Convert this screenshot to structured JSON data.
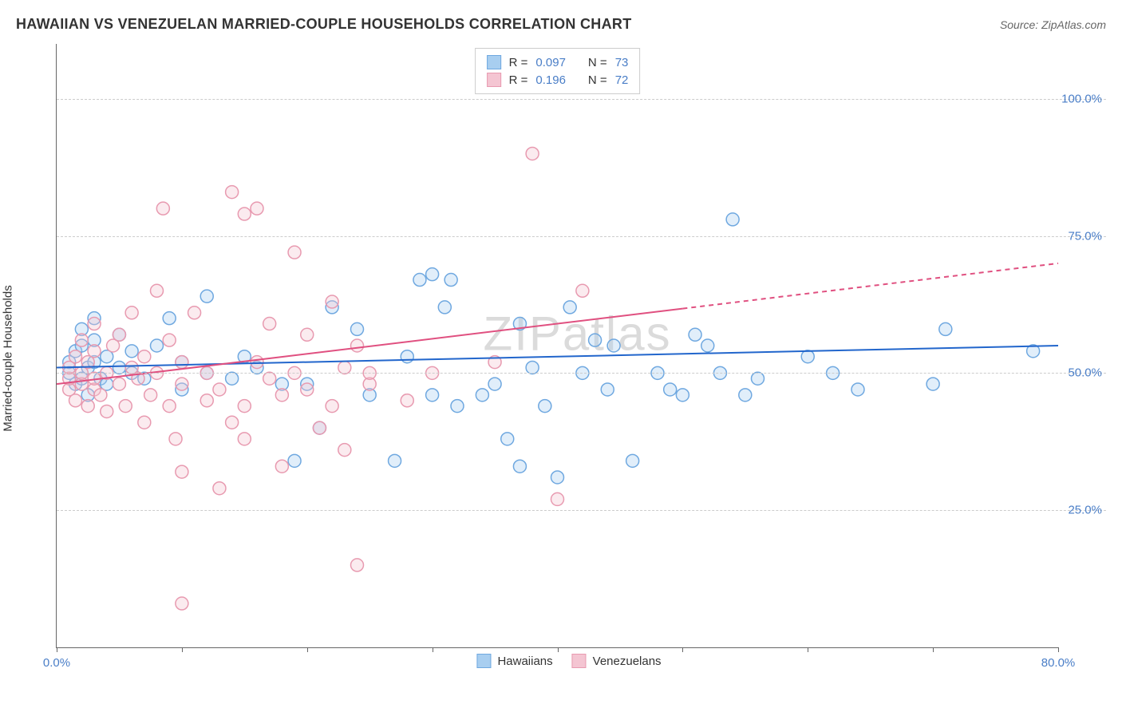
{
  "header": {
    "title": "HAWAIIAN VS VENEZUELAN MARRIED-COUPLE HOUSEHOLDS CORRELATION CHART",
    "source": "Source: ZipAtlas.com"
  },
  "watermark": "ZIPatlas",
  "chart": {
    "type": "scatter",
    "y_axis_label": "Married-couple Households",
    "xlim": [
      0,
      80
    ],
    "ylim": [
      0,
      110
    ],
    "x_ticks": [
      0,
      10,
      20,
      30,
      40,
      50,
      60,
      70,
      80
    ],
    "x_tick_labels": {
      "0": "0.0%",
      "80": "80.0%"
    },
    "y_gridlines": [
      25,
      50,
      75,
      100
    ],
    "y_tick_labels": {
      "25": "25.0%",
      "50": "50.0%",
      "75": "75.0%",
      "100": "100.0%"
    },
    "background_color": "#ffffff",
    "grid_color": "#cccccc",
    "axis_color": "#666666",
    "marker_radius": 8,
    "marker_stroke_width": 1.5,
    "marker_fill_opacity": 0.35,
    "series": [
      {
        "name": "Hawaiians",
        "color_stroke": "#6fa8e0",
        "color_fill": "#a8cef0",
        "r_value": "0.097",
        "n_value": "73",
        "regression": {
          "x1": 0,
          "y1": 51,
          "x2": 80,
          "y2": 55,
          "dashed_from_x": null,
          "line_color": "#2266cc",
          "line_width": 2
        },
        "points": [
          [
            1,
            50
          ],
          [
            1,
            52
          ],
          [
            1.5,
            48
          ],
          [
            1.5,
            54
          ],
          [
            2,
            49
          ],
          [
            2,
            55
          ],
          [
            2,
            58
          ],
          [
            2.5,
            46
          ],
          [
            2.5,
            51
          ],
          [
            3,
            52
          ],
          [
            3,
            56
          ],
          [
            3,
            60
          ],
          [
            3.5,
            49
          ],
          [
            4,
            53
          ],
          [
            4,
            48
          ],
          [
            5,
            57
          ],
          [
            5,
            51
          ],
          [
            6,
            50
          ],
          [
            6,
            54
          ],
          [
            7,
            49
          ],
          [
            8,
            55
          ],
          [
            9,
            60
          ],
          [
            10,
            47
          ],
          [
            10,
            52
          ],
          [
            12,
            50
          ],
          [
            12,
            64
          ],
          [
            14,
            49
          ],
          [
            15,
            53
          ],
          [
            16,
            51
          ],
          [
            18,
            48
          ],
          [
            19,
            34
          ],
          [
            20,
            48
          ],
          [
            21,
            40
          ],
          [
            22,
            62
          ],
          [
            24,
            58
          ],
          [
            25,
            46
          ],
          [
            27,
            34
          ],
          [
            28,
            53
          ],
          [
            29,
            67
          ],
          [
            30,
            46
          ],
          [
            30,
            68
          ],
          [
            31,
            62
          ],
          [
            31.5,
            67
          ],
          [
            32,
            44
          ],
          [
            34,
            46
          ],
          [
            35,
            48
          ],
          [
            36,
            38
          ],
          [
            37,
            33
          ],
          [
            37,
            59
          ],
          [
            38,
            51
          ],
          [
            39,
            44
          ],
          [
            40,
            31
          ],
          [
            41,
            62
          ],
          [
            42,
            50
          ],
          [
            43,
            56
          ],
          [
            44,
            47
          ],
          [
            44.5,
            55
          ],
          [
            46,
            34
          ],
          [
            48,
            50
          ],
          [
            49,
            47
          ],
          [
            50,
            46
          ],
          [
            51,
            57
          ],
          [
            52,
            55
          ],
          [
            53,
            50
          ],
          [
            54,
            78
          ],
          [
            55,
            46
          ],
          [
            56,
            49
          ],
          [
            60,
            53
          ],
          [
            62,
            50
          ],
          [
            64,
            47
          ],
          [
            70,
            48
          ],
          [
            71,
            58
          ],
          [
            78,
            54
          ]
        ]
      },
      {
        "name": "Venezuelans",
        "color_stroke": "#e89ab0",
        "color_fill": "#f4c5d2",
        "r_value": "0.196",
        "n_value": "72",
        "regression": {
          "x1": 0,
          "y1": 48,
          "x2": 80,
          "y2": 70,
          "dashed_from_x": 50,
          "line_color": "#e05080",
          "line_width": 2
        },
        "points": [
          [
            1,
            47
          ],
          [
            1,
            49
          ],
          [
            1,
            51
          ],
          [
            1.5,
            45
          ],
          [
            1.5,
            53
          ],
          [
            2,
            48
          ],
          [
            2,
            50
          ],
          [
            2,
            56
          ],
          [
            2.5,
            44
          ],
          [
            2.5,
            52
          ],
          [
            3,
            47
          ],
          [
            3,
            49
          ],
          [
            3,
            54
          ],
          [
            3,
            59
          ],
          [
            3.5,
            46
          ],
          [
            4,
            50
          ],
          [
            4,
            43
          ],
          [
            4.5,
            55
          ],
          [
            5,
            48
          ],
          [
            5,
            57
          ],
          [
            5.5,
            44
          ],
          [
            6,
            51
          ],
          [
            6,
            61
          ],
          [
            6.5,
            49
          ],
          [
            7,
            41
          ],
          [
            7,
            53
          ],
          [
            7.5,
            46
          ],
          [
            8,
            65
          ],
          [
            8,
            50
          ],
          [
            8.5,
            80
          ],
          [
            9,
            44
          ],
          [
            9,
            56
          ],
          [
            9.5,
            38
          ],
          [
            10,
            32
          ],
          [
            10,
            48
          ],
          [
            10,
            52
          ],
          [
            10,
            8
          ],
          [
            11,
            61
          ],
          [
            12,
            45
          ],
          [
            12,
            50
          ],
          [
            13,
            29
          ],
          [
            13,
            47
          ],
          [
            14,
            41
          ],
          [
            14,
            83
          ],
          [
            15,
            38
          ],
          [
            15,
            79
          ],
          [
            15,
            44
          ],
          [
            16,
            52
          ],
          [
            16,
            80
          ],
          [
            17,
            49
          ],
          [
            17,
            59
          ],
          [
            18,
            33
          ],
          [
            18,
            46
          ],
          [
            19,
            72
          ],
          [
            19,
            50
          ],
          [
            20,
            57
          ],
          [
            20,
            47
          ],
          [
            21,
            40
          ],
          [
            22,
            63
          ],
          [
            22,
            44
          ],
          [
            23,
            36
          ],
          [
            23,
            51
          ],
          [
            24,
            15
          ],
          [
            24,
            55
          ],
          [
            25,
            48
          ],
          [
            25,
            50
          ],
          [
            28,
            45
          ],
          [
            30,
            50
          ],
          [
            35,
            52
          ],
          [
            38,
            90
          ],
          [
            40,
            27
          ],
          [
            42,
            65
          ]
        ]
      }
    ],
    "legend_top": [
      {
        "swatch_fill": "#a8cef0",
        "swatch_stroke": "#6fa8e0",
        "r_label": "R =",
        "r_value": "0.097",
        "n_label": "N =",
        "n_value": "73"
      },
      {
        "swatch_fill": "#f4c5d2",
        "swatch_stroke": "#e89ab0",
        "r_label": "R =",
        "r_value": "0.196",
        "n_label": "N =",
        "n_value": "72"
      }
    ],
    "legend_bottom": [
      {
        "swatch_fill": "#a8cef0",
        "swatch_stroke": "#6fa8e0",
        "label": "Hawaiians"
      },
      {
        "swatch_fill": "#f4c5d2",
        "swatch_stroke": "#e89ab0",
        "label": "Venezuelans"
      }
    ]
  }
}
